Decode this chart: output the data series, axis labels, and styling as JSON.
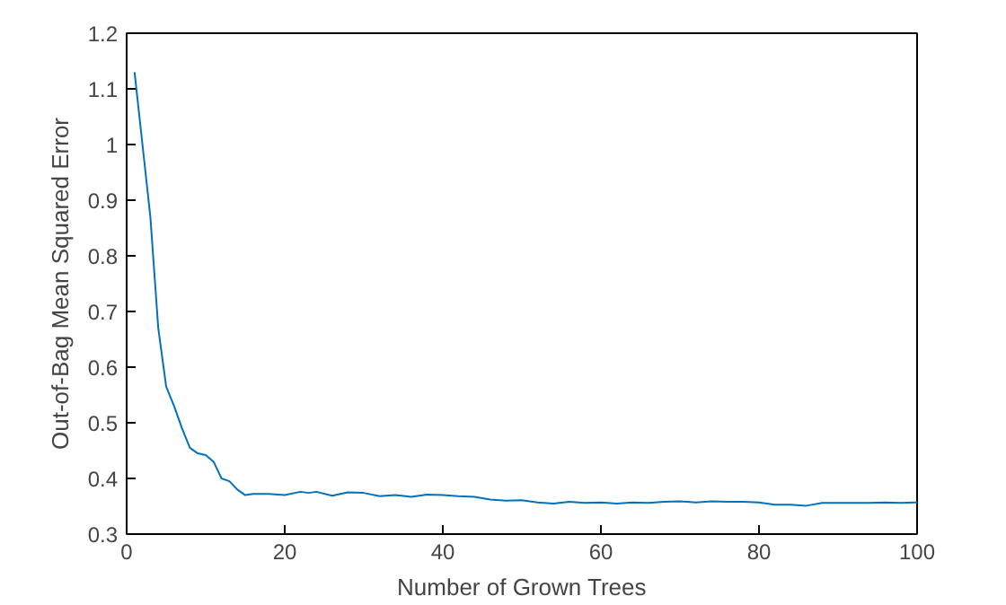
{
  "chart_data": {
    "type": "line",
    "xlabel": "Number of Grown Trees",
    "ylabel": "Out-of-Bag Mean Squared Error",
    "xlim": [
      0,
      100
    ],
    "ylim": [
      0.3,
      1.2
    ],
    "xticks": [
      0,
      20,
      40,
      60,
      80,
      100
    ],
    "yticks": [
      0.3,
      0.4,
      0.5,
      0.6,
      0.7,
      0.8,
      0.9,
      1,
      1.1,
      1.2
    ],
    "grid": false,
    "series": [
      {
        "color": "#0072bd",
        "x": [
          1,
          2,
          3,
          4,
          5,
          6,
          7,
          8,
          9,
          10,
          11,
          12,
          13,
          14,
          15,
          16,
          18,
          20,
          22,
          23,
          24,
          26,
          28,
          30,
          32,
          34,
          36,
          38,
          40,
          42,
          44,
          46,
          48,
          50,
          52,
          54,
          56,
          58,
          60,
          62,
          64,
          66,
          68,
          70,
          72,
          74,
          76,
          78,
          80,
          82,
          84,
          86,
          88,
          90,
          92,
          94,
          96,
          98,
          100
        ],
        "values": [
          1.13,
          1.0,
          0.87,
          0.67,
          0.565,
          0.53,
          0.49,
          0.455,
          0.445,
          0.442,
          0.43,
          0.4,
          0.395,
          0.38,
          0.37,
          0.372,
          0.372,
          0.37,
          0.376,
          0.374,
          0.376,
          0.369,
          0.375,
          0.374,
          0.368,
          0.37,
          0.367,
          0.371,
          0.37,
          0.368,
          0.367,
          0.362,
          0.36,
          0.361,
          0.357,
          0.355,
          0.358,
          0.356,
          0.357,
          0.355,
          0.357,
          0.356,
          0.358,
          0.359,
          0.357,
          0.359,
          0.358,
          0.358,
          0.357,
          0.353,
          0.353,
          0.351,
          0.356,
          0.356,
          0.356,
          0.356,
          0.357,
          0.356,
          0.357
        ]
      }
    ]
  }
}
